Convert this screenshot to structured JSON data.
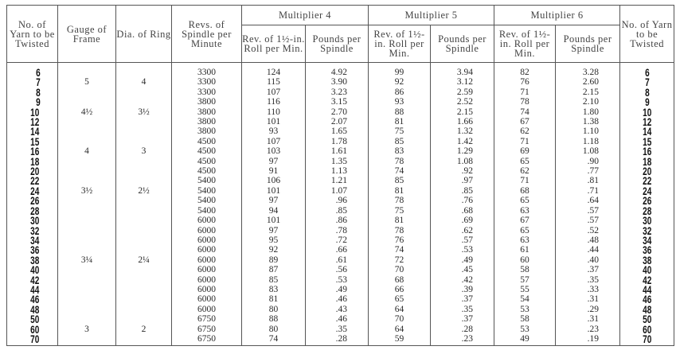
{
  "headers": {
    "yarn_no": "No. of Yarn to be Twisted",
    "gauge": "Gauge of Frame",
    "ring": "Dia. of Ring",
    "revs": "Revs. of Spindle per Minute",
    "multipliers": [
      "Multiplier 4",
      "Multiplier 5",
      "Multiplier 6"
    ],
    "rev_roll": "Rev. of 1½-in. Roll per Min.",
    "pounds": "Pounds per Spindle",
    "yarn_no_right": "No. of Yarn to be Twisted"
  },
  "rows": [
    {
      "yarn": "6",
      "gauge": "",
      "ring": "",
      "revs": "3300",
      "m4_rev": "124",
      "m4_lbs": "4.92",
      "m5_rev": "99",
      "m5_lbs": "3.94",
      "m6_rev": "82",
      "m6_lbs": "3.28"
    },
    {
      "yarn": "7",
      "gauge": "5",
      "ring": "4",
      "revs": "3300",
      "m4_rev": "115",
      "m4_lbs": "3.90",
      "m5_rev": "92",
      "m5_lbs": "3.12",
      "m6_rev": "76",
      "m6_lbs": "2.60"
    },
    {
      "yarn": "8",
      "gauge": "",
      "ring": "",
      "revs": "3300",
      "m4_rev": "107",
      "m4_lbs": "3.23",
      "m5_rev": "86",
      "m5_lbs": "2.59",
      "m6_rev": "71",
      "m6_lbs": "2.15"
    },
    {
      "yarn": "9",
      "gauge": "",
      "ring": "",
      "revs": "3800",
      "m4_rev": "116",
      "m4_lbs": "3.15",
      "m5_rev": "93",
      "m5_lbs": "2.52",
      "m6_rev": "78",
      "m6_lbs": "2.10"
    },
    {
      "yarn": "10",
      "gauge": "4½",
      "ring": "3½",
      "revs": "3800",
      "m4_rev": "110",
      "m4_lbs": "2.70",
      "m5_rev": "88",
      "m5_lbs": "2.15",
      "m6_rev": "74",
      "m6_lbs": "1.80"
    },
    {
      "yarn": "12",
      "gauge": "",
      "ring": "",
      "revs": "3800",
      "m4_rev": "101",
      "m4_lbs": "2.07",
      "m5_rev": "81",
      "m5_lbs": "1.66",
      "m6_rev": "67",
      "m6_lbs": "1.38"
    },
    {
      "yarn": "14",
      "gauge": "",
      "ring": "",
      "revs": "3800",
      "m4_rev": "93",
      "m4_lbs": "1.65",
      "m5_rev": "75",
      "m5_lbs": "1.32",
      "m6_rev": "62",
      "m6_lbs": "1.10"
    },
    {
      "yarn": "15",
      "gauge": "",
      "ring": "",
      "revs": "4500",
      "m4_rev": "107",
      "m4_lbs": "1.78",
      "m5_rev": "85",
      "m5_lbs": "1.42",
      "m6_rev": "71",
      "m6_lbs": "1.18"
    },
    {
      "yarn": "16",
      "gauge": "4",
      "ring": "3",
      "revs": "4500",
      "m4_rev": "103",
      "m4_lbs": "1.61",
      "m5_rev": "83",
      "m5_lbs": "1.29",
      "m6_rev": "69",
      "m6_lbs": "1.08"
    },
    {
      "yarn": "18",
      "gauge": "",
      "ring": "",
      "revs": "4500",
      "m4_rev": "97",
      "m4_lbs": "1.35",
      "m5_rev": "78",
      "m5_lbs": "1.08",
      "m6_rev": "65",
      "m6_lbs": ".90"
    },
    {
      "yarn": "20",
      "gauge": "",
      "ring": "",
      "revs": "4500",
      "m4_rev": "91",
      "m4_lbs": "1.13",
      "m5_rev": "74",
      "m5_lbs": ".92",
      "m6_rev": "62",
      "m6_lbs": ".77"
    },
    {
      "yarn": "22",
      "gauge": "",
      "ring": "",
      "revs": "5400",
      "m4_rev": "106",
      "m4_lbs": "1.21",
      "m5_rev": "85",
      "m5_lbs": ".97",
      "m6_rev": "71",
      "m6_lbs": ".81"
    },
    {
      "yarn": "24",
      "gauge": "3½",
      "ring": "2½",
      "revs": "5400",
      "m4_rev": "101",
      "m4_lbs": "1.07",
      "m5_rev": "81",
      "m5_lbs": ".85",
      "m6_rev": "68",
      "m6_lbs": ".71"
    },
    {
      "yarn": "26",
      "gauge": "",
      "ring": "",
      "revs": "5400",
      "m4_rev": "97",
      "m4_lbs": ".96",
      "m5_rev": "78",
      "m5_lbs": ".76",
      "m6_rev": "65",
      "m6_lbs": ".64"
    },
    {
      "yarn": "28",
      "gauge": "",
      "ring": "",
      "revs": "5400",
      "m4_rev": "94",
      "m4_lbs": ".85",
      "m5_rev": "75",
      "m5_lbs": ".68",
      "m6_rev": "63",
      "m6_lbs": ".57"
    },
    {
      "yarn": "30",
      "gauge": "",
      "ring": "",
      "revs": "6000",
      "m4_rev": "101",
      "m4_lbs": ".86",
      "m5_rev": "81",
      "m5_lbs": ".69",
      "m6_rev": "67",
      "m6_lbs": ".57"
    },
    {
      "yarn": "32",
      "gauge": "",
      "ring": "",
      "revs": "6000",
      "m4_rev": "97",
      "m4_lbs": ".78",
      "m5_rev": "78",
      "m5_lbs": ".62",
      "m6_rev": "65",
      "m6_lbs": ".52"
    },
    {
      "yarn": "34",
      "gauge": "",
      "ring": "",
      "revs": "6000",
      "m4_rev": "95",
      "m4_lbs": ".72",
      "m5_rev": "76",
      "m5_lbs": ".57",
      "m6_rev": "63",
      "m6_lbs": ".48"
    },
    {
      "yarn": "36",
      "gauge": "",
      "ring": "",
      "revs": "6000",
      "m4_rev": "92",
      "m4_lbs": ".66",
      "m5_rev": "74",
      "m5_lbs": ".53",
      "m6_rev": "61",
      "m6_lbs": ".44"
    },
    {
      "yarn": "38",
      "gauge": "3¼",
      "ring": "2¼",
      "revs": "6000",
      "m4_rev": "89",
      "m4_lbs": ".61",
      "m5_rev": "72",
      "m5_lbs": ".49",
      "m6_rev": "60",
      "m6_lbs": ".40"
    },
    {
      "yarn": "40",
      "gauge": "",
      "ring": "",
      "revs": "6000",
      "m4_rev": "87",
      "m4_lbs": ".56",
      "m5_rev": "70",
      "m5_lbs": ".45",
      "m6_rev": "58",
      "m6_lbs": ".37"
    },
    {
      "yarn": "42",
      "gauge": "",
      "ring": "",
      "revs": "6000",
      "m4_rev": "85",
      "m4_lbs": ".53",
      "m5_rev": "68",
      "m5_lbs": ".42",
      "m6_rev": "57",
      "m6_lbs": ".35"
    },
    {
      "yarn": "44",
      "gauge": "",
      "ring": "",
      "revs": "6000",
      "m4_rev": "83",
      "m4_lbs": ".49",
      "m5_rev": "66",
      "m5_lbs": ".39",
      "m6_rev": "55",
      "m6_lbs": ".33"
    },
    {
      "yarn": "46",
      "gauge": "",
      "ring": "",
      "revs": "6000",
      "m4_rev": "81",
      "m4_lbs": ".46",
      "m5_rev": "65",
      "m5_lbs": ".37",
      "m6_rev": "54",
      "m6_lbs": ".31"
    },
    {
      "yarn": "48",
      "gauge": "",
      "ring": "",
      "revs": "6000",
      "m4_rev": "80",
      "m4_lbs": ".43",
      "m5_rev": "64",
      "m5_lbs": ".35",
      "m6_rev": "53",
      "m6_lbs": ".29"
    },
    {
      "yarn": "50",
      "gauge": "",
      "ring": "",
      "revs": "6750",
      "m4_rev": "88",
      "m4_lbs": ".46",
      "m5_rev": "70",
      "m5_lbs": ".37",
      "m6_rev": "58",
      "m6_lbs": ".31"
    },
    {
      "yarn": "60",
      "gauge": "3",
      "ring": "2",
      "revs": "6750",
      "m4_rev": "80",
      "m4_lbs": ".35",
      "m5_rev": "64",
      "m5_lbs": ".28",
      "m6_rev": "53",
      "m6_lbs": ".23"
    },
    {
      "yarn": "70",
      "gauge": "",
      "ring": "",
      "revs": "6750",
      "m4_rev": "74",
      "m4_lbs": ".28",
      "m5_rev": "59",
      "m5_lbs": ".23",
      "m6_rev": "49",
      "m6_lbs": ".19"
    }
  ]
}
